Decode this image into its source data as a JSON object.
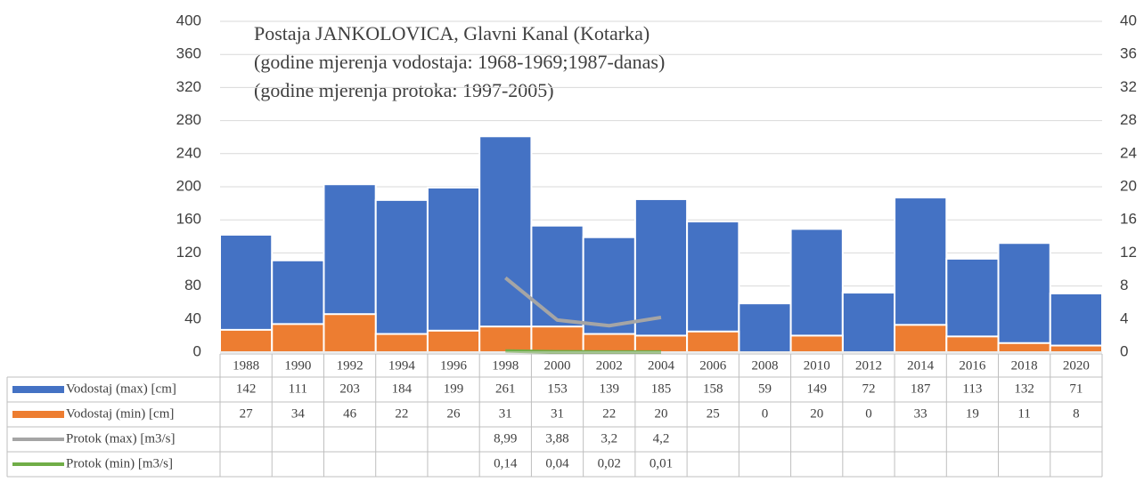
{
  "chart_data": {
    "type": "bar",
    "title": "Postaja JANKOLOVICA, Glavni Kanal (Kotarka)",
    "subtitle": [
      "(godine mjerenja vodostaja: 1968-1969;1987-danas)",
      "(godine mjerenja protoka: 1997-2005)"
    ],
    "categories": [
      "1988",
      "1990",
      "1992",
      "1994",
      "1996",
      "1998",
      "2000",
      "2002",
      "2004",
      "2006",
      "2008",
      "2010",
      "2012",
      "2014",
      "2016",
      "2018",
      "2020"
    ],
    "series": [
      {
        "name": "Vodostaj (max) [cm]",
        "color": "#4472c4",
        "kind": "bar",
        "values": [
          142,
          111,
          203,
          184,
          199,
          261,
          153,
          139,
          185,
          158,
          59,
          149,
          72,
          187,
          113,
          132,
          71
        ]
      },
      {
        "name": "Vodostaj (min) [cm]",
        "color": "#ed7d31",
        "kind": "bar",
        "values": [
          27,
          34,
          46,
          22,
          26,
          31,
          31,
          22,
          20,
          25,
          0,
          20,
          0,
          33,
          19,
          11,
          8
        ]
      },
      {
        "name": "Protok (max) [m3/s]",
        "color": "#a5a5a5",
        "kind": "line",
        "axis": "y2",
        "values": [
          null,
          null,
          null,
          null,
          null,
          8.99,
          3.88,
          3.2,
          4.2,
          null,
          null,
          null,
          null,
          null,
          null,
          null,
          null
        ],
        "value_labels": [
          null,
          null,
          null,
          null,
          null,
          "8,99",
          "3,88",
          "3,2",
          "4,2",
          null,
          null,
          null,
          null,
          null,
          null,
          null,
          null
        ]
      },
      {
        "name": "Protok (min) [m3/s]",
        "color": "#70ad47",
        "kind": "line",
        "axis": "y2",
        "values": [
          null,
          null,
          null,
          null,
          null,
          0.14,
          0.04,
          0.02,
          0.01,
          null,
          null,
          null,
          null,
          null,
          null,
          null,
          null
        ],
        "value_labels": [
          null,
          null,
          null,
          null,
          null,
          "0,14",
          "0,04",
          "0,02",
          "0,01",
          null,
          null,
          null,
          null,
          null,
          null,
          null,
          null
        ]
      }
    ],
    "ylim": [
      0,
      400
    ],
    "yticks": [
      0,
      40,
      80,
      120,
      160,
      200,
      240,
      280,
      320,
      360,
      400
    ],
    "y2lim": [
      0,
      40
    ],
    "y2ticks": [
      0,
      4,
      8,
      12,
      16,
      20,
      24,
      28,
      32,
      36,
      40
    ],
    "grid": true
  }
}
